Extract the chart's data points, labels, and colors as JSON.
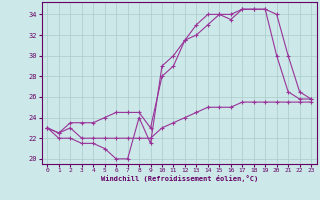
{
  "xlabel": "Windchill (Refroidissement éolien,°C)",
  "bg_color": "#cce8e8",
  "grid_color": "#aacccc",
  "line_color": "#993399",
  "xlim": [
    -0.5,
    23.5
  ],
  "ylim": [
    19.5,
    35.2
  ],
  "xticks": [
    0,
    1,
    2,
    3,
    4,
    5,
    6,
    7,
    8,
    9,
    10,
    11,
    12,
    13,
    14,
    15,
    16,
    17,
    18,
    19,
    20,
    21,
    22,
    23
  ],
  "yticks": [
    20,
    22,
    24,
    26,
    28,
    30,
    32,
    34
  ],
  "line1_x": [
    0,
    1,
    2,
    3,
    4,
    5,
    6,
    7,
    8,
    9,
    10,
    11,
    12,
    13,
    14,
    15,
    16,
    17,
    18,
    19,
    20,
    21,
    22,
    23
  ],
  "line1_y": [
    23,
    22,
    22,
    21.5,
    21.5,
    21,
    20,
    20,
    24,
    21.5,
    29,
    30,
    31.5,
    32,
    33,
    34,
    34,
    34.5,
    34.5,
    34.5,
    30,
    26.5,
    25.8,
    25.8
  ],
  "line2_x": [
    0,
    1,
    2,
    3,
    4,
    5,
    6,
    7,
    8,
    9,
    10,
    11,
    12,
    13,
    14,
    15,
    16,
    17,
    18,
    19,
    20,
    21,
    22,
    23
  ],
  "line2_y": [
    23,
    22.5,
    23.5,
    23.5,
    23.5,
    24,
    24.5,
    24.5,
    24.5,
    23,
    28,
    29,
    31.5,
    33,
    34,
    34,
    33.5,
    34.5,
    34.5,
    34.5,
    34,
    30,
    26.5,
    25.8
  ],
  "line3_x": [
    0,
    1,
    2,
    3,
    4,
    5,
    6,
    7,
    8,
    9,
    10,
    11,
    12,
    13,
    14,
    15,
    16,
    17,
    18,
    19,
    20,
    21,
    22,
    23
  ],
  "line3_y": [
    23,
    22.5,
    23,
    22,
    22,
    22,
    22,
    22,
    22,
    22,
    23,
    23.5,
    24,
    24.5,
    25,
    25,
    25,
    25.5,
    25.5,
    25.5,
    25.5,
    25.5,
    25.5,
    25.5
  ]
}
